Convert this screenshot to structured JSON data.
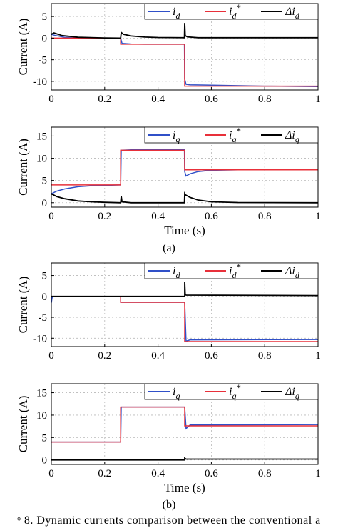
{
  "figure": {
    "caption": "ᵒ 8.  Dynamic  currents  comparison  between  the  conventional  a",
    "subfigure_labels": [
      "(a)",
      "(b)"
    ]
  },
  "colors": {
    "id": "#3050c8",
    "ref": "#e8303a",
    "err": "#000000"
  },
  "chart_data": [
    {
      "type": "line",
      "panel": "(a) top",
      "xlabel": "",
      "ylabel": "Current (A)",
      "xlim": [
        0,
        1
      ],
      "ylim": [
        -12,
        8
      ],
      "xticks": [
        "0",
        "0.2",
        "0.4",
        "0.6",
        "0.8",
        "1"
      ],
      "yticks": [
        "5",
        "0",
        "-5",
        "-10"
      ],
      "ytick_values": [
        5,
        0,
        -5,
        -10
      ],
      "grid": true,
      "legend": "top",
      "series": [
        {
          "name": "i_d",
          "label_main": "i",
          "label_sub": "d",
          "label_sup": "",
          "color": "#3050c8",
          "x": [
            0,
            0.01,
            0.05,
            0.1,
            0.26,
            0.265,
            0.3,
            0.35,
            0.4,
            0.499,
            0.5,
            0.505,
            0.52,
            0.6,
            0.8,
            1.0
          ],
          "y": [
            0.9,
            0.7,
            0.2,
            0.0,
            0.0,
            -1.2,
            -1.35,
            -1.4,
            -1.4,
            -1.4,
            -9.5,
            -10.7,
            -10.8,
            -10.9,
            -11.1,
            -11.2
          ]
        },
        {
          "name": "i_d*",
          "label_main": "i",
          "label_sub": "d",
          "label_sup": "*",
          "color": "#e8303a",
          "x": [
            0,
            0.26,
            0.26,
            0.5,
            0.5,
            1.0
          ],
          "y": [
            0,
            0,
            -1.4,
            -1.4,
            -11.1,
            -11.1
          ]
        },
        {
          "name": "Δi_d",
          "label_main": "Δi",
          "label_sub": "d",
          "label_sup": "",
          "color": "#000000",
          "x": [
            0,
            0.01,
            0.04,
            0.1,
            0.2,
            0.26,
            0.262,
            0.27,
            0.3,
            0.35,
            0.4,
            0.499,
            0.5,
            0.502,
            0.51,
            0.55,
            1.0
          ],
          "y": [
            0.9,
            1.2,
            0.6,
            0.2,
            0.05,
            0.0,
            1.3,
            0.9,
            0.5,
            0.25,
            0.15,
            0.1,
            3.5,
            0.6,
            0.3,
            0.1,
            0.1
          ]
        }
      ]
    },
    {
      "type": "line",
      "panel": "(a) bottom",
      "xlabel": "Time (s)",
      "ylabel": "Current (A)",
      "xlim": [
        0,
        1
      ],
      "ylim": [
        -1,
        17
      ],
      "xticks": [
        "0",
        "0.2",
        "0.4",
        "0.6",
        "0.8",
        "1"
      ],
      "yticks": [
        "15",
        "10",
        "5",
        "0"
      ],
      "ytick_values": [
        15,
        10,
        5,
        0
      ],
      "grid": true,
      "legend": "top",
      "series": [
        {
          "name": "i_q",
          "label_main": "i",
          "label_sub": "q",
          "label_sup": "",
          "color": "#3050c8",
          "x": [
            0,
            0.02,
            0.05,
            0.1,
            0.15,
            0.2,
            0.26,
            0.262,
            0.3,
            0.4,
            0.499,
            0.5,
            0.505,
            0.52,
            0.55,
            0.6,
            0.7,
            1.0
          ],
          "y": [
            2.0,
            2.6,
            3.1,
            3.6,
            3.8,
            3.9,
            4.0,
            11.8,
            11.9,
            11.9,
            11.9,
            7.0,
            6.0,
            6.5,
            7.0,
            7.3,
            7.4,
            7.4
          ]
        },
        {
          "name": "i_q*",
          "label_main": "i",
          "label_sub": "q",
          "label_sup": "*",
          "color": "#e8303a",
          "x": [
            0,
            0.26,
            0.26,
            0.5,
            0.5,
            1.0
          ],
          "y": [
            4,
            4,
            11.8,
            11.8,
            7.4,
            7.4
          ]
        },
        {
          "name": "Δi_q",
          "label_main": "Δi",
          "label_sub": "q",
          "label_sup": "",
          "color": "#000000",
          "x": [
            0,
            0.02,
            0.05,
            0.1,
            0.15,
            0.2,
            0.26,
            0.262,
            0.265,
            0.3,
            0.499,
            0.5,
            0.502,
            0.52,
            0.55,
            0.6,
            0.7,
            1.0
          ],
          "y": [
            2.0,
            1.4,
            0.9,
            0.4,
            0.2,
            0.1,
            0.0,
            1.5,
            0.2,
            0.0,
            0.0,
            2.0,
            1.8,
            1.2,
            0.6,
            0.2,
            0.05,
            0.0
          ]
        }
      ]
    },
    {
      "type": "line",
      "panel": "(b) top",
      "xlabel": "",
      "ylabel": "Current (A)",
      "xlim": [
        0,
        1
      ],
      "ylim": [
        -12,
        8
      ],
      "xticks": [
        "0",
        "0.2",
        "0.4",
        "0.6",
        "0.8",
        "1"
      ],
      "yticks": [
        "5",
        "0",
        "-5",
        "-10"
      ],
      "ytick_values": [
        5,
        0,
        -5,
        -10
      ],
      "grid": true,
      "legend": "top",
      "series": [
        {
          "name": "i_d",
          "label_main": "i",
          "label_sub": "d",
          "label_sup": "",
          "color": "#3050c8",
          "x": [
            0,
            0.003,
            0.006,
            0.26,
            0.26,
            0.5,
            0.505,
            0.52,
            1.0
          ],
          "y": [
            -1.5,
            -0.3,
            0.0,
            0.0,
            -1.4,
            -1.4,
            -10.7,
            -10.4,
            -10.3
          ]
        },
        {
          "name": "i_d*",
          "label_main": "i",
          "label_sub": "d",
          "label_sup": "*",
          "color": "#e8303a",
          "x": [
            0,
            0.26,
            0.26,
            0.5,
            0.5,
            1.0
          ],
          "y": [
            0,
            0,
            -1.4,
            -1.4,
            -10.8,
            -10.8
          ]
        },
        {
          "name": "Δi_d",
          "label_main": "Δi",
          "label_sub": "d",
          "label_sup": "",
          "color": "#000000",
          "x": [
            0,
            0.5,
            0.5,
            0.502,
            0.505,
            1.0
          ],
          "y": [
            0,
            0,
            3.5,
            0.5,
            0.3,
            0.2
          ]
        }
      ]
    },
    {
      "type": "line",
      "panel": "(b) bottom",
      "xlabel": "Time (s)",
      "ylabel": "Current (A)",
      "xlim": [
        0,
        1
      ],
      "ylim": [
        -1,
        17
      ],
      "xticks": [
        "0",
        "0.2",
        "0.4",
        "0.6",
        "0.8",
        "1"
      ],
      "yticks": [
        "15",
        "10",
        "5",
        "0"
      ],
      "ytick_values": [
        15,
        10,
        5,
        0
      ],
      "grid": true,
      "legend": "top",
      "series": [
        {
          "name": "i_q",
          "label_main": "i",
          "label_sub": "q",
          "label_sup": "",
          "color": "#3050c8",
          "x": [
            0,
            0.26,
            0.262,
            0.5,
            0.505,
            0.52,
            1.0
          ],
          "y": [
            4,
            4,
            11.8,
            11.8,
            7.0,
            7.8,
            7.9
          ]
        },
        {
          "name": "i_q*",
          "label_main": "i",
          "label_sub": "q",
          "label_sup": "*",
          "color": "#e8303a",
          "x": [
            0,
            0.26,
            0.26,
            0.5,
            0.5,
            1.0
          ],
          "y": [
            4,
            4,
            11.8,
            11.8,
            7.6,
            7.6
          ]
        },
        {
          "name": "Δi_q",
          "label_main": "Δi",
          "label_sub": "q",
          "label_sup": "",
          "color": "#000000",
          "x": [
            0,
            0.5,
            0.5,
            0.505,
            1.0
          ],
          "y": [
            0,
            0,
            0.4,
            0.2,
            0.2
          ]
        }
      ]
    }
  ]
}
